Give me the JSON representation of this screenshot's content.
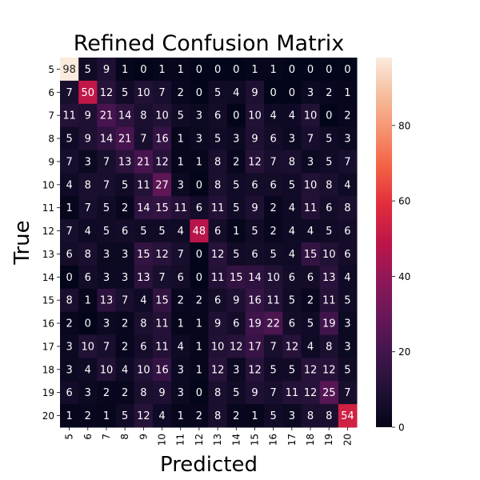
{
  "chart_data": {
    "type": "heatmap",
    "title": "Refined Confusion Matrix",
    "xlabel": "Predicted",
    "ylabel": "True",
    "x_categories": [
      "5",
      "6",
      "7",
      "8",
      "9",
      "10",
      "11",
      "12",
      "13",
      "14",
      "15",
      "16",
      "17",
      "18",
      "19",
      "20"
    ],
    "y_categories": [
      "5",
      "6",
      "7",
      "8",
      "9",
      "10",
      "11",
      "12",
      "13",
      "14",
      "15",
      "16",
      "17",
      "18",
      "19",
      "20"
    ],
    "matrix": [
      [
        98,
        5,
        9,
        1,
        0,
        1,
        1,
        0,
        0,
        0,
        1,
        1,
        0,
        0,
        0,
        0
      ],
      [
        7,
        50,
        12,
        5,
        10,
        7,
        2,
        0,
        5,
        4,
        9,
        0,
        0,
        3,
        2,
        1
      ],
      [
        11,
        9,
        21,
        14,
        8,
        10,
        5,
        3,
        6,
        0,
        10,
        4,
        4,
        10,
        0,
        2
      ],
      [
        5,
        9,
        14,
        21,
        7,
        16,
        1,
        3,
        5,
        3,
        9,
        6,
        3,
        7,
        5,
        3
      ],
      [
        7,
        3,
        7,
        13,
        21,
        12,
        1,
        1,
        8,
        2,
        12,
        7,
        8,
        3,
        5,
        7
      ],
      [
        4,
        8,
        7,
        5,
        11,
        27,
        3,
        0,
        8,
        5,
        6,
        6,
        5,
        10,
        8,
        4
      ],
      [
        1,
        7,
        5,
        2,
        14,
        15,
        11,
        6,
        11,
        5,
        9,
        2,
        4,
        11,
        6,
        8
      ],
      [
        7,
        4,
        5,
        6,
        5,
        5,
        4,
        48,
        6,
        1,
        5,
        2,
        4,
        4,
        5,
        6
      ],
      [
        6,
        8,
        3,
        3,
        15,
        12,
        7,
        0,
        12,
        5,
        6,
        5,
        4,
        15,
        10,
        6
      ],
      [
        0,
        6,
        3,
        3,
        13,
        7,
        6,
        0,
        11,
        15,
        14,
        10,
        6,
        6,
        13,
        4
      ],
      [
        8,
        1,
        13,
        7,
        4,
        15,
        2,
        2,
        6,
        9,
        16,
        11,
        5,
        2,
        11,
        5
      ],
      [
        2,
        0,
        3,
        2,
        8,
        11,
        1,
        1,
        9,
        6,
        19,
        22,
        6,
        5,
        19,
        3
      ],
      [
        3,
        10,
        7,
        2,
        6,
        11,
        4,
        1,
        10,
        12,
        17,
        7,
        12,
        4,
        8,
        3
      ],
      [
        3,
        4,
        10,
        4,
        10,
        16,
        3,
        1,
        12,
        3,
        12,
        5,
        5,
        12,
        12,
        5
      ],
      [
        6,
        3,
        2,
        2,
        8,
        9,
        3,
        0,
        8,
        5,
        9,
        7,
        11,
        12,
        25,
        7
      ],
      [
        1,
        2,
        1,
        5,
        12,
        4,
        1,
        2,
        8,
        2,
        1,
        5,
        3,
        8,
        8,
        54
      ]
    ],
    "vmin": 0,
    "vmax": 98,
    "colorbar_ticks": [
      0,
      20,
      40,
      60,
      80
    ],
    "colormap": "rocket"
  }
}
